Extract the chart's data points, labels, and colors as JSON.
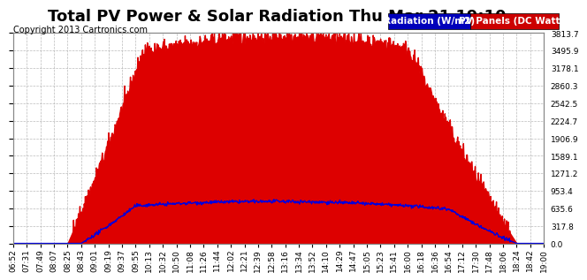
{
  "title": "Total PV Power & Solar Radiation Thu Mar 21 19:10",
  "copyright": "Copyright 2013 Cartronics.com",
  "legend_radiation": "Radiation (W/m2)",
  "legend_pv": "PV Panels (DC Watts)",
  "legend_radiation_color": "#0000bb",
  "legend_pv_color": "#cc0000",
  "background_color": "#ffffff",
  "plot_bg_color": "#ffffff",
  "grid_color": "#aaaaaa",
  "pv_fill_color": "#dd0000",
  "radiation_line_color": "#0000dd",
  "ymax": 3813.7,
  "yticks": [
    0.0,
    317.8,
    635.6,
    953.4,
    1271.2,
    1589.1,
    1906.9,
    2224.7,
    2542.5,
    2860.3,
    3178.1,
    3495.9,
    3813.7
  ],
  "ytick_labels": [
    "0.0",
    "317.8",
    "635.6",
    "953.4",
    "1271.2",
    "1589.1",
    "1906.9",
    "2224.7",
    "2542.5",
    "2860.3",
    "3178.1",
    "3495.9",
    "3813.7"
  ],
  "xtick_labels": [
    "06:52",
    "07:31",
    "07:49",
    "08:07",
    "08:25",
    "08:43",
    "09:01",
    "09:19",
    "09:37",
    "09:55",
    "10:13",
    "10:32",
    "10:50",
    "11:08",
    "11:26",
    "11:44",
    "12:02",
    "12:21",
    "12:39",
    "12:58",
    "13:16",
    "13:34",
    "13:52",
    "14:10",
    "14:29",
    "14:47",
    "15:05",
    "15:23",
    "15:41",
    "16:00",
    "16:18",
    "16:36",
    "16:54",
    "17:12",
    "17:30",
    "17:48",
    "18:06",
    "18:24",
    "18:42",
    "19:00"
  ],
  "n_points": 40,
  "title_fontsize": 13,
  "copyright_fontsize": 7,
  "tick_fontsize": 6.5,
  "legend_fontsize": 7.5
}
